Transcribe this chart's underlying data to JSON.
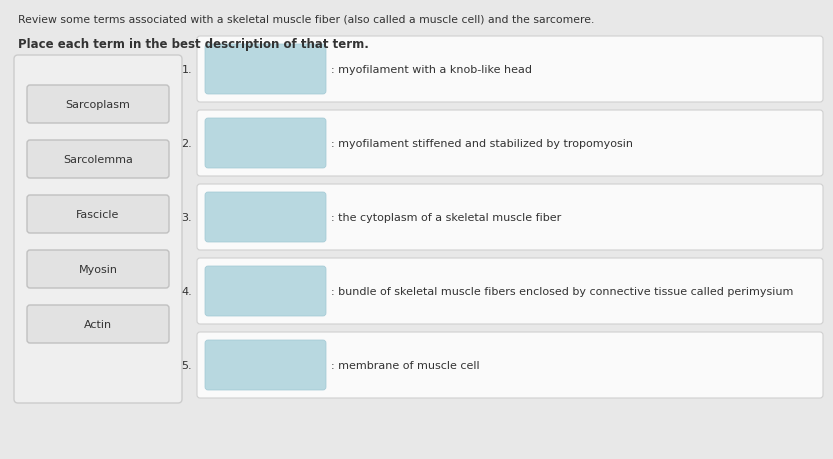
{
  "title_line1": "Review some terms associated with a skeletal muscle fiber (also called a muscle cell) and the sarcomere.",
  "title_line2": "Place each term in the best description of that term.",
  "terms": [
    "Sarcoplasm",
    "Sarcolemma",
    "Fascicle",
    "Myosin",
    "Actin"
  ],
  "descriptions": [
    {
      "num": "1.",
      "text": ": myofilament with a knob-like head"
    },
    {
      "num": "2.",
      "text": ": myofilament stiffened and stabilized by tropomyosin"
    },
    {
      "num": "3.",
      "text": ": the cytoplasm of a skeletal muscle fiber"
    },
    {
      "num": "4.",
      "text": ": bundle of skeletal muscle fibers enclosed by connective tissue called perimysium"
    },
    {
      "num": "5.",
      "text": ": membrane of muscle cell"
    }
  ],
  "page_bg": "#e8e8e8",
  "content_bg": "#f5f5f5",
  "term_box_fill": "#e2e2e2",
  "term_box_edge": "#c0c0c0",
  "answer_box_fill": "#b8d8e0",
  "answer_box_edge": "#a0c8d4",
  "row_box_fill": "#fafafa",
  "row_box_edge": "#d0d0d0",
  "left_panel_fill": "#efefef",
  "left_panel_edge": "#cccccc",
  "text_color": "#333333",
  "title1_fontsize": 7.8,
  "title2_fontsize": 8.5,
  "term_fontsize": 8.0,
  "num_fontsize": 8.0,
  "desc_fontsize": 8.0
}
